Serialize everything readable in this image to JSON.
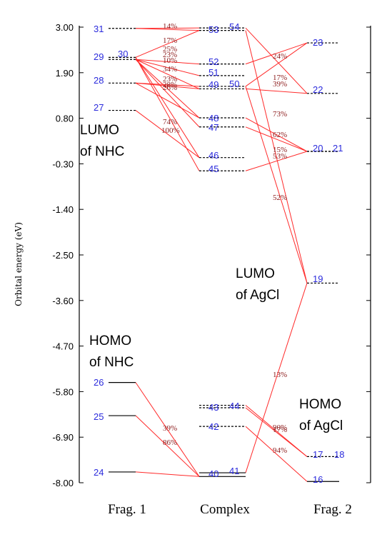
{
  "axis": {
    "title": "Orbital energy (eV)",
    "ticks": [
      "3.00",
      "1.90",
      "0.80",
      "-0.30",
      "-1.40",
      "-2.50",
      "-3.60",
      "-4.70",
      "-5.80",
      "-6.90",
      "-8.00"
    ],
    "tick_values": [
      3.0,
      1.9,
      0.8,
      -0.3,
      -1.4,
      -2.5,
      -3.6,
      -4.7,
      -5.8,
      -6.9,
      -8.0
    ],
    "range": [
      -8.0,
      3.0
    ]
  },
  "fragments": {
    "frag1": "Frag.  1",
    "complex": "Complex",
    "frag2": "Frag.  2"
  },
  "annotations": {
    "lumo_nhc": [
      "LUMO",
      "of NHC"
    ],
    "homo_nhc": [
      "HOMO",
      "of NHC"
    ],
    "lumo_agcl": [
      "LUMO",
      "of AgCl"
    ],
    "homo_agcl": [
      "HOMO",
      "of AgCl"
    ]
  },
  "orbitals": {
    "frag1": [
      {
        "num": "31",
        "energy": 2.97
      },
      {
        "num": "30",
        "energy": 2.27
      },
      {
        "num": "29",
        "energy": 2.22
      },
      {
        "num": "28",
        "energy": 1.65
      },
      {
        "num": "27",
        "energy": 0.99
      },
      {
        "num": "26",
        "energy": -5.58
      },
      {
        "num": "25",
        "energy": -6.38
      },
      {
        "num": "24",
        "energy": -7.74
      }
    ],
    "complex": [
      {
        "num": "54",
        "energy": 2.98
      },
      {
        "num": "53",
        "energy": 2.92
      },
      {
        "num": "52",
        "energy": 2.11
      },
      {
        "num": "51",
        "energy": 1.83
      },
      {
        "num": "50",
        "energy": 1.57
      },
      {
        "num": "49",
        "energy": 1.51
      },
      {
        "num": "48",
        "energy": 0.81
      },
      {
        "num": "47",
        "energy": 0.59
      },
      {
        "num": "46",
        "energy": -0.15
      },
      {
        "num": "45",
        "energy": -0.47
      },
      {
        "num": "44",
        "energy": -6.13
      },
      {
        "num": "43",
        "energy": -6.19
      },
      {
        "num": "42",
        "energy": -6.64
      },
      {
        "num": "41",
        "energy": -7.76
      },
      {
        "num": "40",
        "energy": -7.85
      }
    ],
    "frag2": [
      {
        "num": "23",
        "energy": 2.62
      },
      {
        "num": "22",
        "energy": 1.4
      },
      {
        "num": "21",
        "energy": 0.0
      },
      {
        "num": "20",
        "energy": 0.0
      },
      {
        "num": "19",
        "energy": -3.18
      },
      {
        "num": "18",
        "energy": -7.37
      },
      {
        "num": "17",
        "energy": -7.37
      },
      {
        "num": "16",
        "energy": -7.97
      }
    ]
  },
  "percentages": [
    {
      "text": "14%"
    },
    {
      "text": "17%"
    },
    {
      "text": "25%"
    },
    {
      "text": "23%"
    },
    {
      "text": "10%"
    },
    {
      "text": "34%"
    },
    {
      "text": "23%"
    },
    {
      "text": "28%"
    },
    {
      "text": "26%"
    },
    {
      "text": "74%"
    },
    {
      "text": "100%"
    },
    {
      "text": "39%"
    },
    {
      "text": "86%"
    },
    {
      "text": "24%"
    },
    {
      "text": "17%"
    },
    {
      "text": "39%"
    },
    {
      "text": "73%"
    },
    {
      "text": "62%"
    },
    {
      "text": "15%"
    },
    {
      "text": "53%"
    },
    {
      "text": "52%"
    },
    {
      "text": "13%"
    },
    {
      "text": "90%"
    },
    {
      "text": "17%"
    },
    {
      "text": "94%"
    }
  ],
  "colors": {
    "orbital_number": "#2b2bdc",
    "percentage": "#8b1a1a",
    "connector": "#ff2a2a",
    "level": "#000000"
  }
}
